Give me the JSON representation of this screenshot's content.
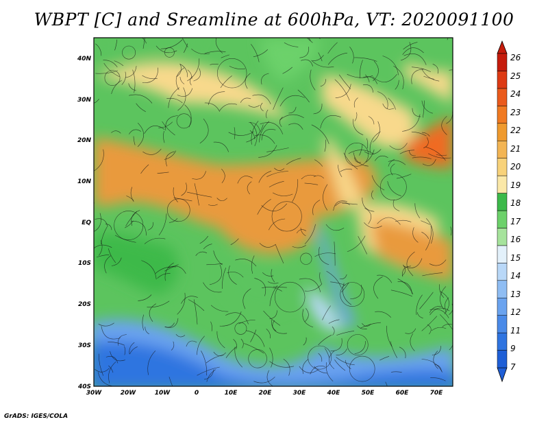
{
  "title": "WBPT [C] and Sreamline at 600hPa, VT: 2020091100",
  "credit": "GrADS: IGES/COLA",
  "map": {
    "lon_labels": [
      "30W",
      "20W",
      "10W",
      "0",
      "10E",
      "20E",
      "30E",
      "40E",
      "50E",
      "60E",
      "70E"
    ],
    "lat_labels": [
      "40N",
      "30N",
      "20N",
      "10N",
      "EQ",
      "10S",
      "20S",
      "30S",
      "40S"
    ]
  },
  "colorbar": {
    "labels": [
      "7",
      "9",
      "11",
      "12",
      "13",
      "14",
      "15",
      "16",
      "17",
      "18",
      "19",
      "20",
      "21",
      "22",
      "23",
      "24",
      "25",
      "26"
    ],
    "colors": [
      "#1f5fd6",
      "#2f74e0",
      "#4a8ae8",
      "#6aa3ef",
      "#8fbdf3",
      "#b9d8f8",
      "#e3f1fb",
      "#a6e39c",
      "#6cd16a",
      "#3cb94a",
      "#fbe8a8",
      "#f8d27a",
      "#f3b554",
      "#ef9a2e",
      "#f07a22",
      "#ea5a1c",
      "#dd3a14",
      "#c51c0c"
    ]
  },
  "colors": {
    "ocean_cold": "#2f74e0",
    "green": "#5cc45e",
    "yellow": "#f8d98c",
    "orange": "#e99a3c",
    "hot": "#f06a22"
  }
}
